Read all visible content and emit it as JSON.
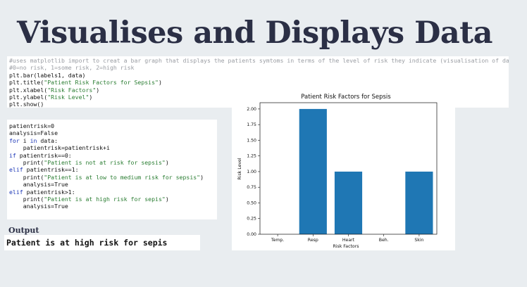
{
  "slide": {
    "title": "Visualises and Displays Data"
  },
  "code_block_1": [
    [
      {
        "t": "#uses matplotlib import to creat a bar graph that displays the patients symtoms in terms of the level of risk they indicate (visualisation of data)",
        "c": "cmt"
      }
    ],
    [
      {
        "t": "#0=no risk, 1=some risk, 2=high risk",
        "c": "cmt"
      }
    ],
    [
      {
        "t": "plt.bar(labels1, data)",
        "c": "plain"
      }
    ],
    [
      {
        "t": "plt.title(",
        "c": "plain"
      },
      {
        "t": "\"Patient Risk Factors for Sepsis\"",
        "c": "str"
      },
      {
        "t": ")",
        "c": "plain"
      }
    ],
    [
      {
        "t": "plt.xlabel(",
        "c": "plain"
      },
      {
        "t": "\"Risk Factors\"",
        "c": "str"
      },
      {
        "t": ")",
        "c": "plain"
      }
    ],
    [
      {
        "t": "plt.ylabel(",
        "c": "plain"
      },
      {
        "t": "\"Risk Level\"",
        "c": "str"
      },
      {
        "t": ")",
        "c": "plain"
      }
    ],
    [
      {
        "t": "plt.show()",
        "c": "plain"
      }
    ]
  ],
  "code_block_2": [
    [
      {
        "t": "patientrisk=0",
        "c": "plain"
      }
    ],
    [
      {
        "t": "analysis=False",
        "c": "plain"
      }
    ],
    [
      {
        "t": "for",
        "c": "kw"
      },
      {
        "t": " i ",
        "c": "plain"
      },
      {
        "t": "in",
        "c": "kw"
      },
      {
        "t": " data:",
        "c": "plain"
      }
    ],
    [
      {
        "t": "    patientrisk=patientrisk+i",
        "c": "plain"
      }
    ],
    [
      {
        "t": "if",
        "c": "kw"
      },
      {
        "t": " patientrisk==0:",
        "c": "plain"
      }
    ],
    [
      {
        "t": "    print(",
        "c": "plain"
      },
      {
        "t": "\"Patient is not at risk for sepsis\"",
        "c": "str"
      },
      {
        "t": ")",
        "c": "plain"
      }
    ],
    [
      {
        "t": "elif",
        "c": "kw"
      },
      {
        "t": " patientrisk==1:",
        "c": "plain"
      }
    ],
    [
      {
        "t": "    print(",
        "c": "plain"
      },
      {
        "t": "\"Patient is at low to medium risk for sepsis\"",
        "c": "str"
      },
      {
        "t": ")",
        "c": "plain"
      }
    ],
    [
      {
        "t": "    analysis=True",
        "c": "plain"
      }
    ],
    [
      {
        "t": "elif",
        "c": "kw"
      },
      {
        "t": " patientrisk>1:",
        "c": "plain"
      }
    ],
    [
      {
        "t": "    print(",
        "c": "plain"
      },
      {
        "t": "\"Patient is at high risk for sepis\"",
        "c": "str"
      },
      {
        "t": ")",
        "c": "plain"
      }
    ],
    [
      {
        "t": "    analysis=True",
        "c": "plain"
      }
    ]
  ],
  "colors": {
    "string": "#2a7d32",
    "keyword": "#1a35b6",
    "comment": "#9a9da3",
    "bar": "#1f77b4",
    "title": "#2b2f45"
  },
  "output": {
    "label": "Output",
    "text": "Patient is at high risk for sepis"
  },
  "chart_data": {
    "type": "bar",
    "title": "Patient Risk Factors for Sepsis",
    "xlabel": "Risk Factors",
    "ylabel": "Risk Level",
    "categories": [
      "Temp.",
      "Resp",
      "Heart",
      "Beh.",
      "Skin"
    ],
    "values": [
      0,
      2,
      1,
      0,
      1
    ],
    "ylim": [
      0,
      2.1
    ],
    "yticks": [
      "0.00",
      "0.25",
      "0.50",
      "0.75",
      "1.00",
      "1.25",
      "1.50",
      "1.75",
      "2.00"
    ],
    "grid": false
  }
}
